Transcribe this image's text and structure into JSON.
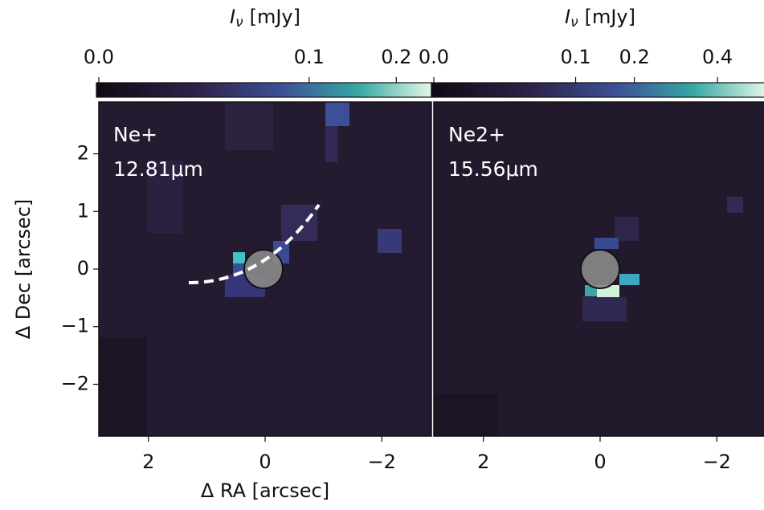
{
  "chart_data": [
    {
      "type": "image",
      "label_lines": [
        "Ne+",
        "12.81μm"
      ],
      "colorbar": {
        "symbol": "I",
        "subscript": "ν",
        "unit": "[mJy]",
        "norm": "sqrt",
        "clim": [
          0,
          0.25
        ],
        "ticks": [
          {
            "value": 0,
            "label": "0.0"
          },
          0.1,
          0.2
        ]
      },
      "xlabel": "Δ RA [arcsec]",
      "ylabel": "Δ Dec [arcsec]",
      "xlim": [
        2.85,
        -2.85
      ],
      "ylim": [
        -2.9,
        2.9
      ],
      "xticks": [
        2,
        0,
        {
          "value": -2,
          "label": "−2"
        }
      ],
      "yticks": [
        2,
        1,
        0,
        {
          "value": -1,
          "label": "−1"
        },
        {
          "value": -2,
          "label": "−2"
        }
      ]
    },
    {
      "type": "image",
      "label_lines": [
        "Ne2+",
        "15.56μm"
      ],
      "colorbar": {
        "symbol": "I",
        "subscript": "ν",
        "unit": "[mJy]",
        "norm": "sqrt",
        "clim": [
          0,
          0.55
        ],
        "ticks": [
          {
            "value": 0,
            "label": "0.0"
          },
          0.1,
          0.2,
          0.4
        ]
      },
      "xlim": [
        2.85,
        -2.85
      ],
      "ylim": [
        -2.9,
        2.9
      ],
      "xticks": [
        2,
        0,
        {
          "value": -2,
          "label": "−2"
        }
      ]
    }
  ]
}
